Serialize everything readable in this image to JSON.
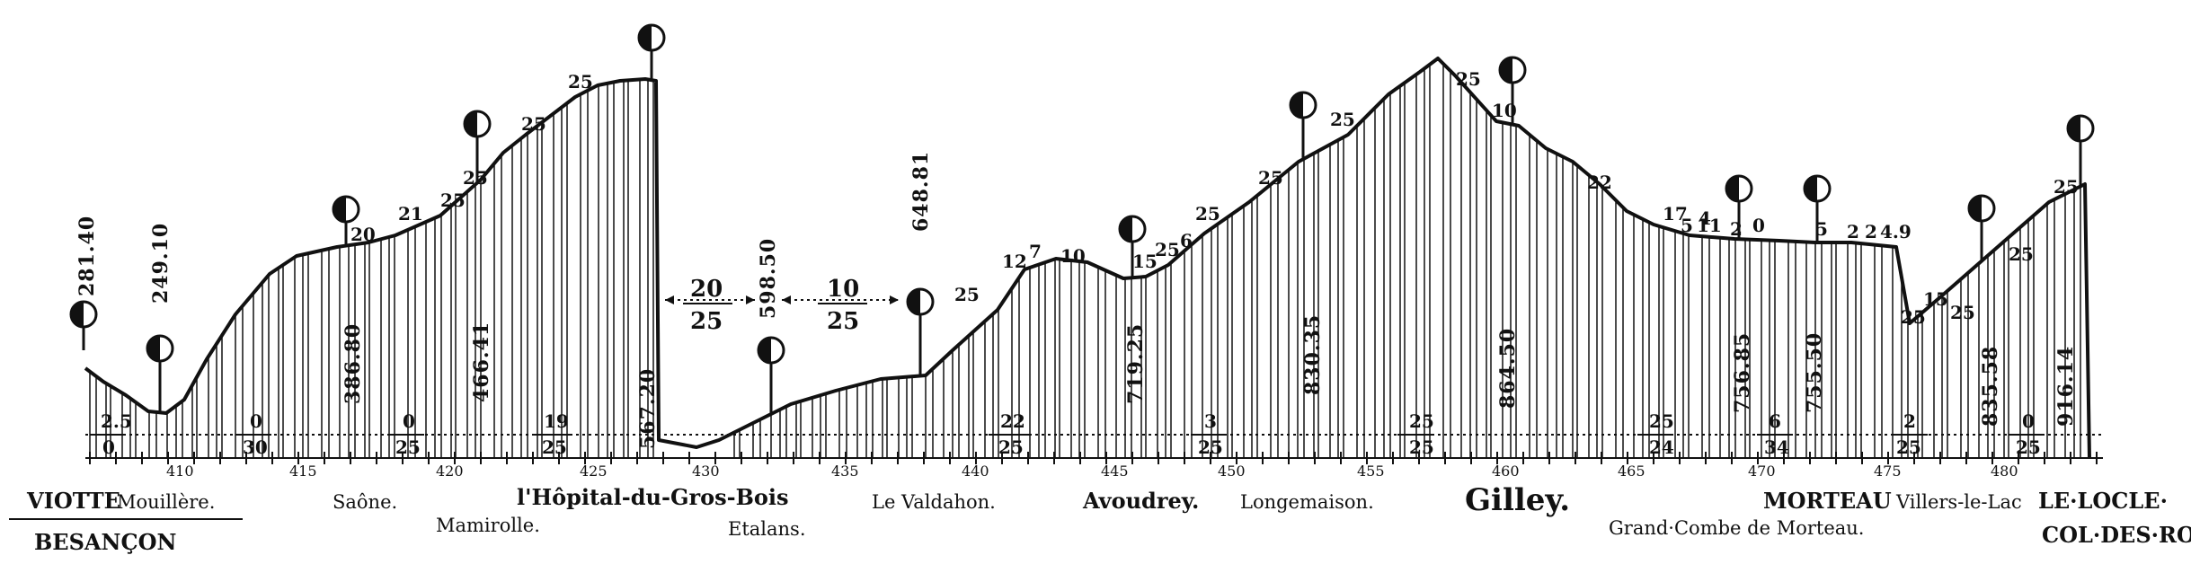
{
  "stations": [
    {
      "id": "viotte",
      "label": "VIOTTE"
    },
    {
      "id": "mouillere",
      "label": "Mouillère."
    },
    {
      "id": "besancon",
      "label": "BESANÇON"
    },
    {
      "id": "saone",
      "label": "Saône."
    },
    {
      "id": "mamirolle",
      "label": "Mamirolle."
    },
    {
      "id": "hopital",
      "label": "l'Hôpital-du-Gros-Bois"
    },
    {
      "id": "etalans",
      "label": "Etalans."
    },
    {
      "id": "valdahon",
      "label": "Le Valdahon."
    },
    {
      "id": "avoudrey",
      "label": "Avoudrey."
    },
    {
      "id": "longemaison",
      "label": "Longemaison."
    },
    {
      "id": "gilley",
      "label": "Gilley."
    },
    {
      "id": "grandcombe",
      "label": "Grand·Combe de Morteau."
    },
    {
      "id": "morteau",
      "label": "MORTEAU"
    },
    {
      "id": "villers",
      "label": "Villers-le-Lac"
    },
    {
      "id": "lelocle",
      "label": "LE·LOCLE·"
    },
    {
      "id": "coldesroches",
      "label": "COL·DES·ROCHES"
    }
  ],
  "altitudes": [
    {
      "label": "281.40"
    },
    {
      "label": "249.10"
    },
    {
      "label": "386.80"
    },
    {
      "label": "466.41"
    },
    {
      "label": "567.20"
    },
    {
      "label": "598.50"
    },
    {
      "label": "648.81"
    },
    {
      "label": "719.25"
    },
    {
      "label": "830.35"
    },
    {
      "label": "864.50"
    },
    {
      "label": "756.85"
    },
    {
      "label": "755.50"
    },
    {
      "label": "835.58"
    },
    {
      "label": "916.14"
    }
  ],
  "km_marks": [
    {
      "label": "410"
    },
    {
      "label": "415"
    },
    {
      "label": "420"
    },
    {
      "label": "425"
    },
    {
      "label": "430"
    },
    {
      "label": "435"
    },
    {
      "label": "440"
    },
    {
      "label": "445"
    },
    {
      "label": "450"
    },
    {
      "label": "455"
    },
    {
      "label": "460"
    },
    {
      "label": "465"
    },
    {
      "label": "470"
    },
    {
      "label": "475"
    },
    {
      "label": "480"
    }
  ],
  "gradients": [
    {
      "top": "2.5",
      "bottom": "0"
    },
    {
      "top": "0",
      "bottom": "30"
    },
    {
      "top": "0",
      "bottom": "25"
    },
    {
      "top": "19",
      "bottom": "25"
    },
    {
      "top": "22",
      "bottom": "25"
    },
    {
      "top": "3",
      "bottom": "25"
    },
    {
      "top": "25",
      "bottom": "25"
    },
    {
      "top": "25",
      "bottom": "24"
    },
    {
      "top": "6",
      "bottom": "34"
    },
    {
      "top": "2",
      "bottom": "25"
    },
    {
      "top": "0",
      "bottom": "25"
    }
  ],
  "summit_ramps": [
    {
      "top": "20",
      "bottom": "25"
    },
    {
      "top": "10",
      "bottom": "25"
    }
  ],
  "profile_labels": [
    {
      "t": "25"
    },
    {
      "t": "25"
    },
    {
      "t": "21"
    },
    {
      "t": "20"
    },
    {
      "t": "25"
    },
    {
      "t": "25"
    },
    {
      "t": "25"
    },
    {
      "t": "25"
    },
    {
      "t": "12"
    },
    {
      "t": "7"
    },
    {
      "t": "10"
    },
    {
      "t": "15"
    },
    {
      "t": "25"
    },
    {
      "t": "6"
    },
    {
      "t": "25"
    },
    {
      "t": "25"
    },
    {
      "t": "10"
    },
    {
      "t": "25"
    },
    {
      "t": "22"
    },
    {
      "t": "17"
    },
    {
      "t": "5"
    },
    {
      "t": "11"
    },
    {
      "t": "2"
    },
    {
      "t": "0"
    },
    {
      "t": "5"
    },
    {
      "t": "2"
    },
    {
      "t": "2"
    },
    {
      "t": "4.9"
    },
    {
      "t": "25"
    },
    {
      "t": "15"
    },
    {
      "t": "25"
    },
    {
      "t": "25"
    },
    {
      "t": "25"
    },
    {
      "t": "4"
    }
  ],
  "signals": [
    {
      "icon": "signal-disc-icon"
    },
    {
      "icon": "signal-disc-icon"
    },
    {
      "icon": "signal-disc-icon"
    },
    {
      "icon": "signal-disc-icon"
    },
    {
      "icon": "signal-disc-icon"
    },
    {
      "icon": "signal-disc-icon"
    },
    {
      "icon": "signal-disc-icon"
    },
    {
      "icon": "signal-disc-icon"
    },
    {
      "icon": "signal-disc-icon"
    },
    {
      "icon": "signal-disc-icon"
    },
    {
      "icon": "signal-disc-icon"
    },
    {
      "icon": "signal-disc-icon"
    },
    {
      "icon": "signal-disc-icon"
    },
    {
      "icon": "signal-disc-icon"
    }
  ]
}
